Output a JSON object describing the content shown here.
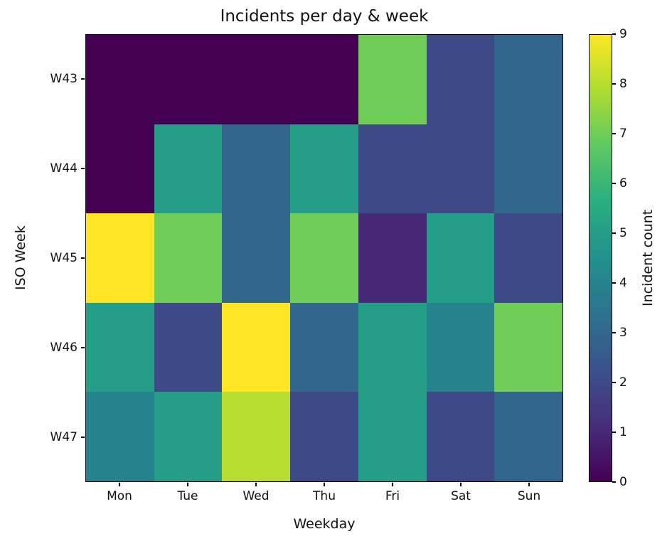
{
  "chart_data": {
    "type": "heatmap",
    "title": "Incidents per day & week",
    "xlabel": "Weekday",
    "ylabel": "ISO Week",
    "colorbar_label": "Incident count",
    "colormap": "viridis",
    "vmin": 0,
    "vmax": 9,
    "columns": [
      "Mon",
      "Tue",
      "Wed",
      "Thu",
      "Fri",
      "Sat",
      "Sun"
    ],
    "rows": [
      "W43",
      "W44",
      "W45",
      "W46",
      "W47"
    ],
    "values": [
      [
        0,
        0,
        0,
        0,
        7,
        2,
        3
      ],
      [
        0,
        5,
        3,
        5,
        2,
        2,
        3
      ],
      [
        9,
        7,
        3,
        7,
        1,
        5,
        2
      ],
      [
        5,
        2,
        9,
        3,
        5,
        4,
        7
      ],
      [
        4,
        5,
        8,
        2,
        5,
        2,
        3
      ]
    ],
    "colorbar_ticks": [
      0,
      1,
      2,
      3,
      4,
      5,
      6,
      7,
      8,
      9
    ],
    "legend_position": "right-colorbar",
    "grid": false
  }
}
